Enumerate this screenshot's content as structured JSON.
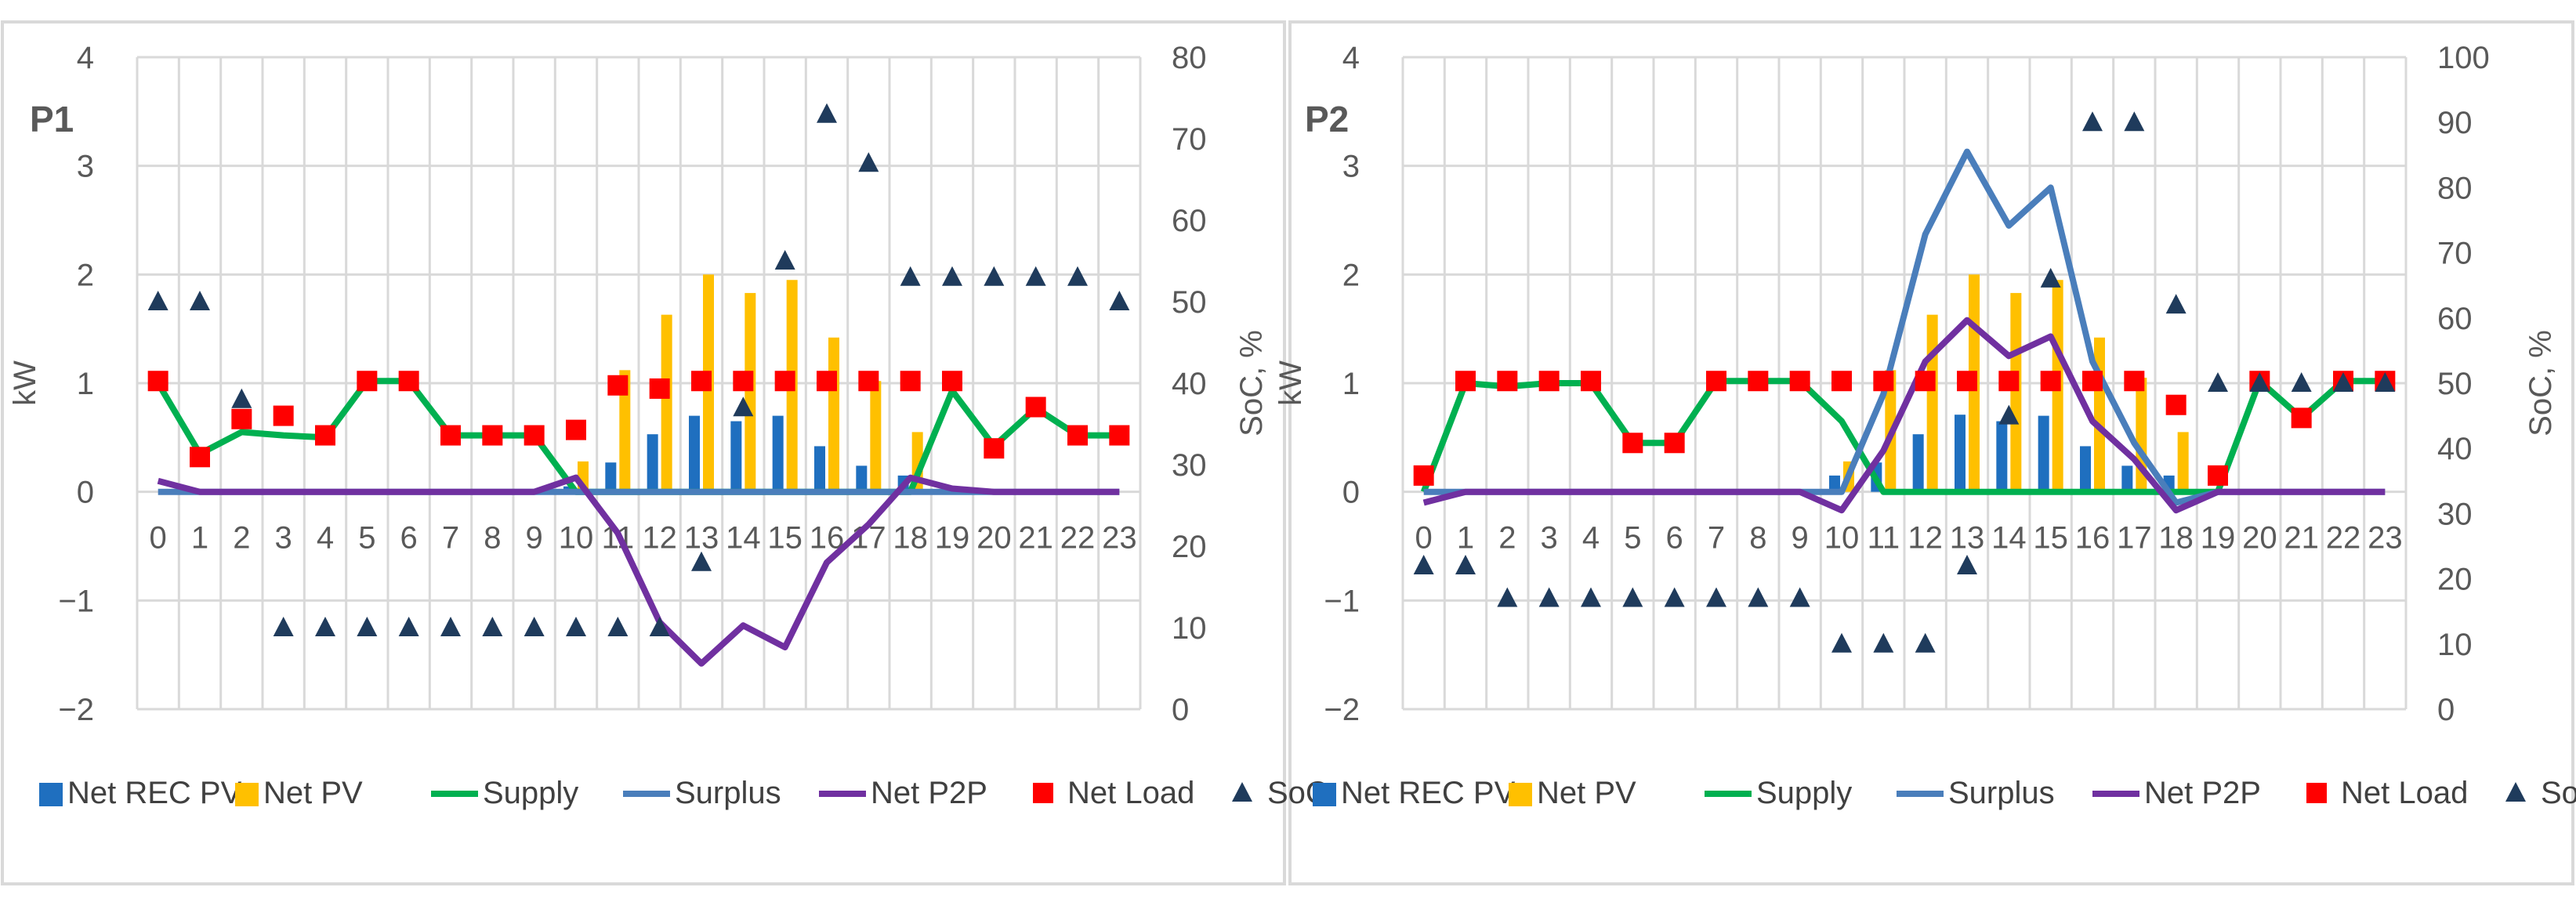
{
  "colors": {
    "net_rec_pv": "#1F6FBF",
    "net_pv": "#FFC000",
    "supply": "#00B050",
    "surplus": "#4A7EBB",
    "net_p2p": "#7030A0",
    "net_load": "#FF0000",
    "soc": "#1F3B5C",
    "grid": "#D9D9D9",
    "axis_text": "#595959"
  },
  "chart_data": [
    {
      "panel": "P1",
      "type": "combo",
      "xlabel": "",
      "ylabel": "kW",
      "y2label": "SoC, %",
      "ylim": [
        -2,
        4
      ],
      "yticks": [
        4,
        3,
        2,
        1,
        0,
        -1,
        -2
      ],
      "ytick_labels": [
        "4",
        "3",
        "2",
        "1",
        "0",
        "−1",
        "−2"
      ],
      "y2lim": [
        0,
        80
      ],
      "y2ticks": [
        80,
        70,
        60,
        50,
        40,
        30,
        20,
        10,
        0
      ],
      "y2tick_labels": [
        "80",
        "70",
        "60",
        "50",
        "40",
        "30",
        "20",
        "10",
        "0"
      ],
      "categories": [
        "0",
        "1",
        "2",
        "3",
        "4",
        "5",
        "6",
        "7",
        "8",
        "9",
        "10",
        "11",
        "12",
        "13",
        "14",
        "15",
        "16",
        "17",
        "18",
        "19",
        "20",
        "21",
        "22",
        "23"
      ],
      "series": [
        {
          "name": "Net REC PV",
          "kind": "bar",
          "axis": "left",
          "values": [
            0,
            0,
            0,
            0,
            0,
            0,
            0,
            0,
            0,
            0,
            0.05,
            0.27,
            0.53,
            0.7,
            0.65,
            0.7,
            0.42,
            0.24,
            0.15,
            0,
            0,
            0,
            0,
            0
          ]
        },
        {
          "name": "Net PV",
          "kind": "bar",
          "axis": "left",
          "values": [
            0,
            0,
            0,
            0,
            0,
            0,
            0,
            0,
            0,
            0,
            0.28,
            1.12,
            1.63,
            2.0,
            1.83,
            1.95,
            1.42,
            1.02,
            0.55,
            0,
            0,
            0,
            0,
            0
          ]
        },
        {
          "name": "Supply",
          "kind": "line",
          "axis": "left",
          "values": [
            1.0,
            0.35,
            0.55,
            0.52,
            0.5,
            1.02,
            1.02,
            0.52,
            0.52,
            0.52,
            0,
            0,
            0,
            0,
            0,
            0,
            0,
            0,
            0,
            0.93,
            0.42,
            0.77,
            0.52,
            0.52
          ]
        },
        {
          "name": "Surplus",
          "kind": "line",
          "axis": "left",
          "values": [
            0,
            0,
            0,
            0,
            0,
            0,
            0,
            0,
            0,
            0,
            0,
            0,
            0,
            0,
            0,
            0,
            0,
            0,
            0,
            0,
            0,
            0,
            0,
            0
          ]
        },
        {
          "name": "Net P2P",
          "kind": "line",
          "axis": "left",
          "values": [
            0.1,
            0,
            0,
            0,
            0,
            0,
            0,
            0,
            0,
            0,
            0.13,
            -0.38,
            -1.2,
            -1.58,
            -1.23,
            -1.43,
            -0.65,
            -0.3,
            0.13,
            0.03,
            0,
            0,
            0,
            0
          ]
        },
        {
          "name": "Net Load",
          "kind": "marker",
          "axis": "left",
          "marker": "square",
          "values": [
            1.02,
            0.32,
            0.67,
            0.7,
            0.52,
            1.02,
            1.02,
            0.52,
            0.52,
            0.52,
            0.57,
            0.98,
            0.95,
            1.02,
            1.02,
            1.02,
            1.02,
            1.02,
            1.02,
            1.02,
            0.4,
            0.78,
            0.52,
            0.52
          ]
        },
        {
          "name": "SoC",
          "kind": "marker",
          "axis": "right",
          "marker": "triangle",
          "values": [
            50,
            50,
            38,
            10,
            10,
            10,
            10,
            10,
            10,
            10,
            10,
            10,
            10,
            18,
            37,
            55,
            73,
            67,
            53,
            53,
            53,
            53,
            53,
            50
          ]
        }
      ],
      "legend": [
        "Net REC PV",
        "Net PV",
        "Supply",
        "Surplus",
        "Net P2P",
        "Net Load",
        "SoC"
      ],
      "legend_position": "bottom"
    },
    {
      "panel": "P2",
      "type": "combo",
      "xlabel": "",
      "ylabel": "kW",
      "y2label": "SoC, %",
      "ylim": [
        -2,
        4
      ],
      "yticks": [
        4,
        3,
        2,
        1,
        0,
        -1,
        -2
      ],
      "ytick_labels": [
        "4",
        "3",
        "2",
        "1",
        "0",
        "−1",
        "−2"
      ],
      "y2lim": [
        0,
        100
      ],
      "y2ticks": [
        100,
        90,
        80,
        70,
        60,
        50,
        40,
        30,
        20,
        10,
        0
      ],
      "y2tick_labels": [
        "100",
        "90",
        "80",
        "70",
        "60",
        "50",
        "40",
        "30",
        "20",
        "10",
        "0"
      ],
      "categories": [
        "0",
        "1",
        "2",
        "3",
        "4",
        "5",
        "6",
        "7",
        "8",
        "9",
        "10",
        "11",
        "12",
        "13",
        "14",
        "15",
        "16",
        "17",
        "18",
        "19",
        "20",
        "21",
        "22",
        "23"
      ],
      "series": [
        {
          "name": "Net REC PV",
          "kind": "bar",
          "axis": "left",
          "values": [
            0,
            0,
            0,
            0,
            0,
            0,
            0,
            0,
            0,
            0,
            0.15,
            0.27,
            0.53,
            0.71,
            0.65,
            0.7,
            0.42,
            0.24,
            0.15,
            0,
            0,
            0,
            0,
            0
          ]
        },
        {
          "name": "Net PV",
          "kind": "bar",
          "axis": "left",
          "values": [
            0,
            0,
            0,
            0,
            0,
            0,
            0,
            0,
            0,
            0,
            0.28,
            1.12,
            1.63,
            2.0,
            1.83,
            1.95,
            1.42,
            1.05,
            0.55,
            0,
            0,
            0,
            0,
            0
          ]
        },
        {
          "name": "Supply",
          "kind": "line",
          "axis": "left",
          "values": [
            0,
            1.0,
            0.97,
            1.0,
            1.0,
            0.45,
            0.45,
            1.02,
            1.02,
            1.02,
            0.65,
            0,
            0,
            0,
            0,
            0,
            0,
            0,
            0,
            0,
            1.02,
            0.68,
            1.02,
            1.02
          ]
        },
        {
          "name": "Surplus",
          "kind": "line",
          "axis": "left",
          "values": [
            0,
            0,
            0,
            0,
            0,
            0,
            0,
            0,
            0,
            0,
            0,
            0.9,
            2.37,
            3.13,
            2.45,
            2.8,
            1.2,
            0.45,
            -0.1,
            0,
            0,
            0,
            0,
            0
          ]
        },
        {
          "name": "Net P2P",
          "kind": "line",
          "axis": "left",
          "values": [
            -0.1,
            0,
            0,
            0,
            0,
            0,
            0,
            0,
            0,
            0,
            -0.17,
            0.38,
            1.2,
            1.58,
            1.25,
            1.43,
            0.65,
            0.3,
            -0.17,
            0,
            0,
            0,
            0,
            0
          ]
        },
        {
          "name": "Net Load",
          "kind": "marker",
          "axis": "left",
          "marker": "square",
          "values": [
            0.15,
            1.02,
            1.02,
            1.02,
            1.02,
            0.45,
            0.45,
            1.02,
            1.02,
            1.02,
            1.02,
            1.02,
            1.02,
            1.02,
            1.02,
            1.02,
            1.02,
            1.02,
            0.8,
            0.15,
            1.02,
            0.68,
            1.02,
            1.02
          ]
        },
        {
          "name": "SoC",
          "kind": "marker",
          "axis": "right",
          "marker": "triangle",
          "values": [
            22,
            22,
            17,
            17,
            17,
            17,
            17,
            17,
            17,
            17,
            10,
            10,
            10,
            22,
            45,
            66,
            90,
            90,
            62,
            50,
            50,
            50,
            50,
            50
          ]
        }
      ],
      "legend": [
        "Net REC PV",
        "Net PV",
        "Supply",
        "Surplus",
        "Net P2P",
        "Net Load",
        "SoC"
      ],
      "legend_position": "bottom"
    }
  ]
}
